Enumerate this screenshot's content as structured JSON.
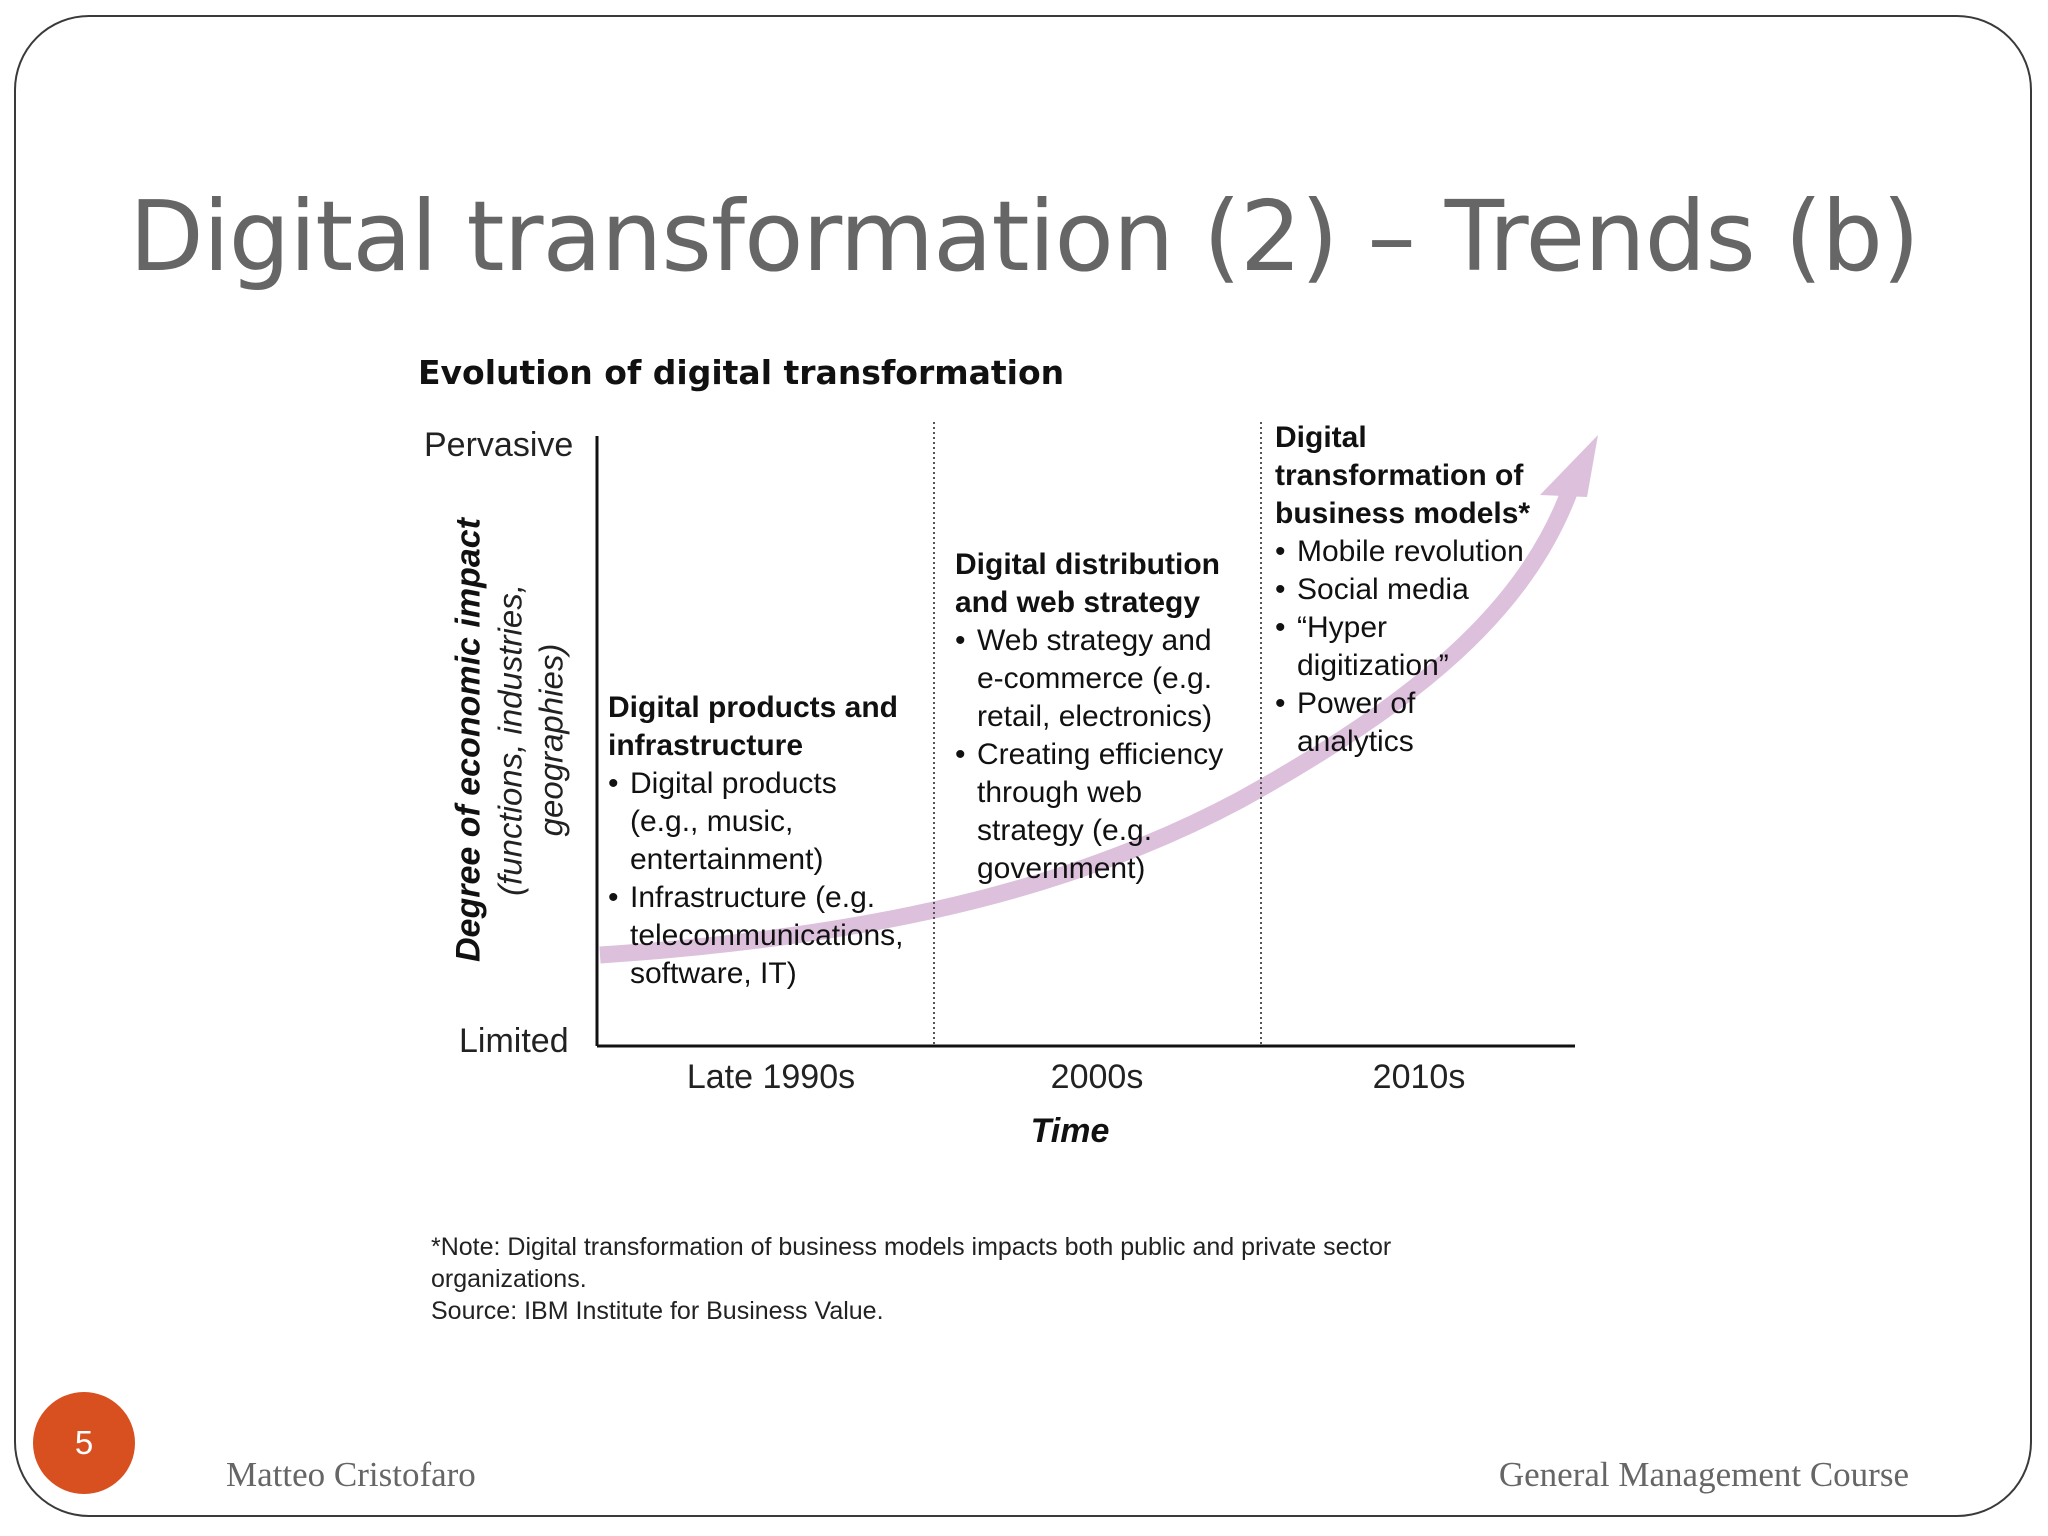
{
  "slide": {
    "title": "Digital transformation (2) – Trends (b)",
    "page_number": "5",
    "footer_left": "Matteo Cristofaro",
    "footer_right": "General Management Course"
  },
  "figure": {
    "title": "Evolution of digital transformation",
    "y_axis": {
      "label": "Degree of economic impact",
      "sublabel_line1": "(functions, industries,",
      "sublabel_line2": "geographies)",
      "top": "Pervasive",
      "bottom": "Limited"
    },
    "x_axis": {
      "label": "Time",
      "ticks": [
        "Late 1990s",
        "2000s",
        "2010s"
      ]
    },
    "phases": [
      {
        "title_line1": "Digital products and",
        "title_line2": "infrastructure",
        "bullets": [
          {
            "line1": "Digital products",
            "line2": "(e.g., music,",
            "line3": "entertainment)"
          },
          {
            "line1": "Infrastructure (e.g.",
            "line2": "telecommunications,",
            "line3": "software, IT)"
          }
        ]
      },
      {
        "title_line1": "Digital distribution",
        "title_line2": "and web strategy",
        "bullets": [
          {
            "line1": "Web strategy and",
            "line2": "e-commerce (e.g.",
            "line3": "retail, electronics)"
          },
          {
            "line1": "Creating efficiency",
            "line2": "through web",
            "line3": "strategy (e.g.",
            "line4": "government)"
          }
        ]
      },
      {
        "title_line1": "Digital",
        "title_line2": "transformation of",
        "title_line3": "business models*",
        "bullets": [
          {
            "line1": "Mobile revolution"
          },
          {
            "line1": "Social media"
          },
          {
            "line1": "“Hyper",
            "line2": "digitization”"
          },
          {
            "line1": "Power of",
            "line2": "analytics"
          }
        ]
      }
    ],
    "note_line1": "*Note: Digital transformation of business models impacts both public and private sector",
    "note_line2": "organizations.",
    "source": "Source: IBM Institute for Business Value.",
    "colors": {
      "arrow": "#dcc0dc",
      "axis": "#111111",
      "badge": "#d84f20"
    }
  }
}
